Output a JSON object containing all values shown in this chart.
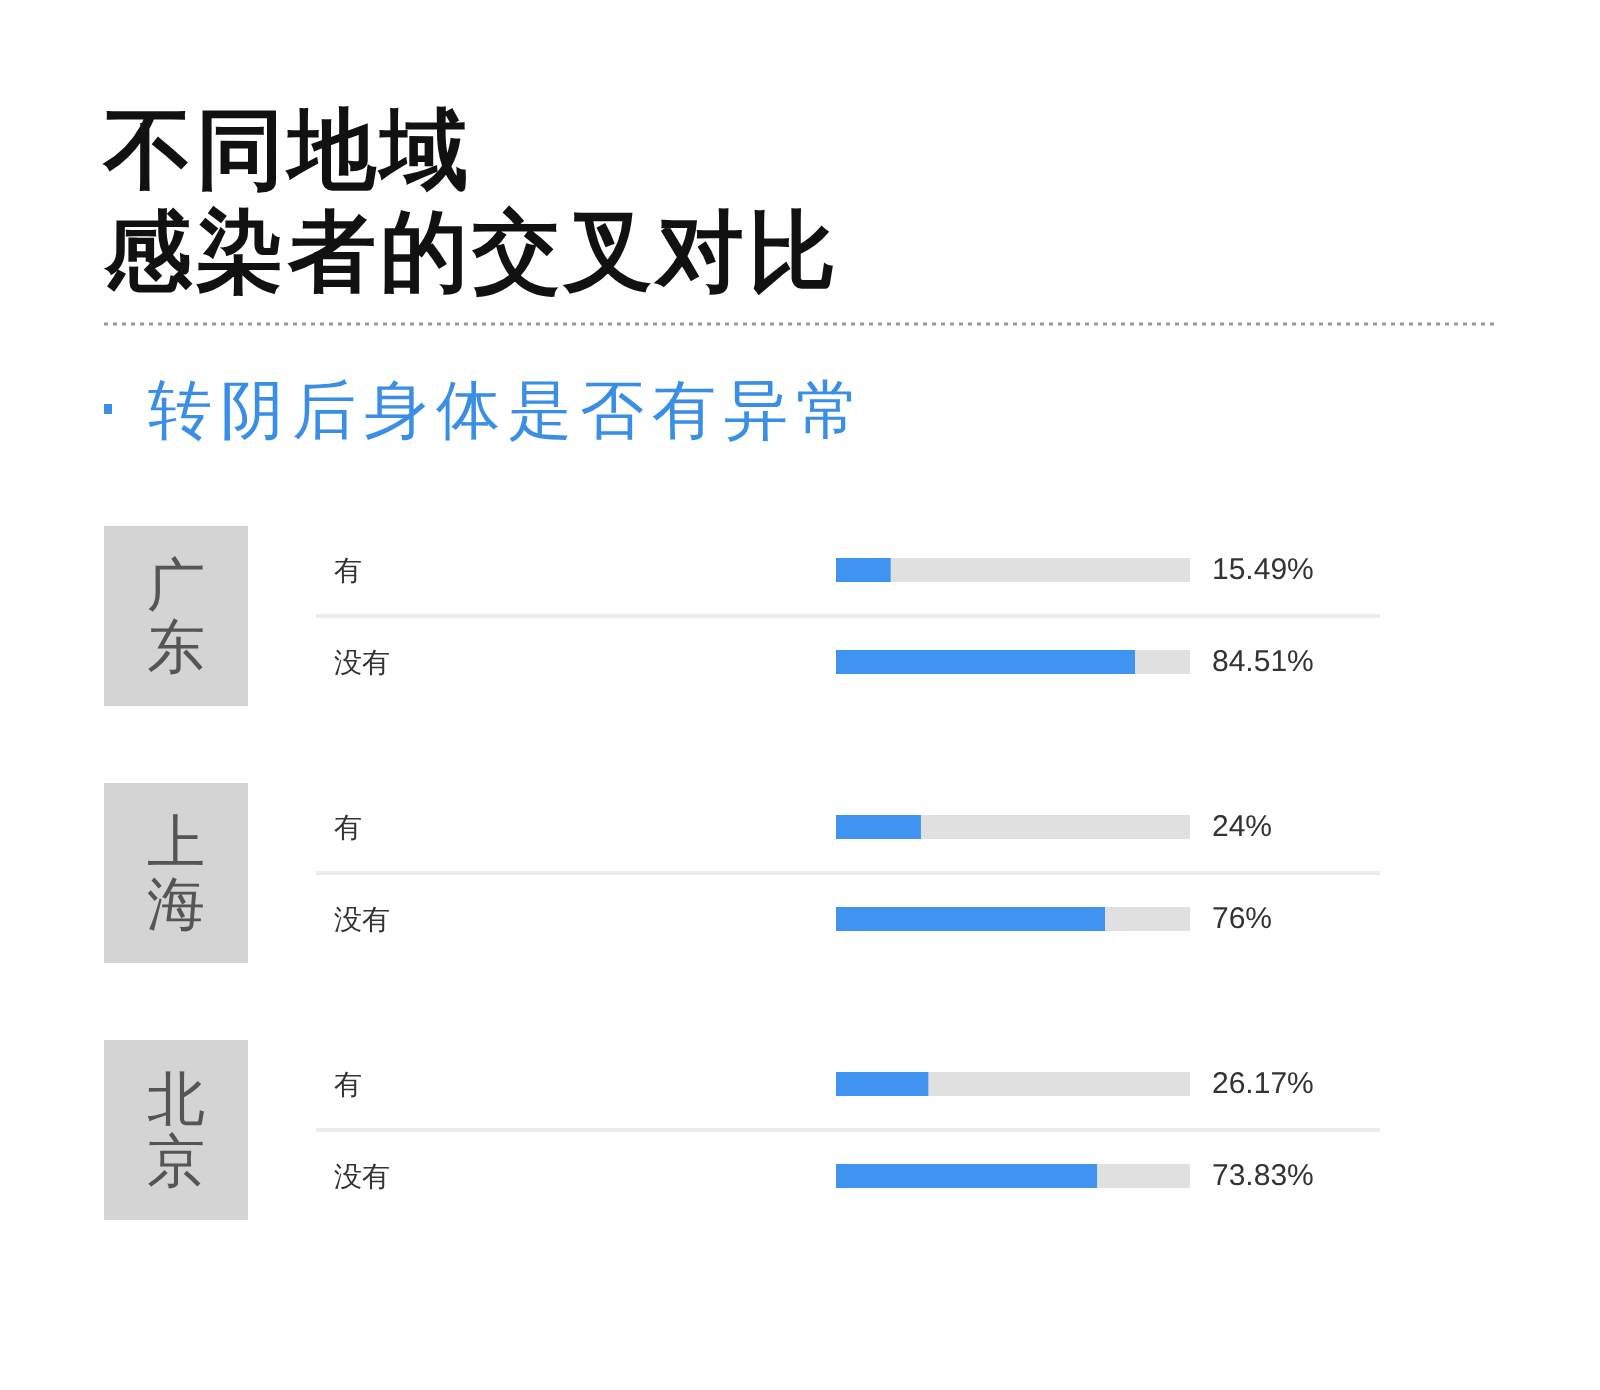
{
  "chart_data": [
    {
      "type": "other",
      "title": "不同地域感染者的交叉对比",
      "subtitle": "转阴后身体是否有异常"
    },
    {
      "type": "bar",
      "orientation": "horizontal",
      "stacked": true,
      "title": "广东",
      "categories": [
        "有",
        "没有"
      ],
      "xlim": [
        0,
        100
      ],
      "series": [
        {
          "color": "#3f94f2",
          "values": [
            15.49,
            84.51
          ],
          "value_labels": [
            "15.49%",
            "84.51%"
          ]
        },
        {
          "color": "#e0e0e0",
          "values": [
            84.51,
            15.49
          ]
        }
      ]
    },
    {
      "type": "bar",
      "orientation": "horizontal",
      "stacked": true,
      "title": "上海",
      "categories": [
        "有",
        "没有"
      ],
      "xlim": [
        0,
        100
      ],
      "series": [
        {
          "color": "#3f94f2",
          "values": [
            24,
            76
          ],
          "value_labels": [
            "24%",
            "76%"
          ]
        },
        {
          "color": "#e0e0e0",
          "values": [
            76,
            24
          ]
        }
      ]
    },
    {
      "type": "bar",
      "orientation": "horizontal",
      "stacked": true,
      "title": "北京",
      "categories": [
        "有",
        "没有"
      ],
      "xlim": [
        0,
        100
      ],
      "series": [
        {
          "color": "#3f94f2",
          "values": [
            26.17,
            73.83
          ],
          "value_labels": [
            "26.17%",
            "73.83%"
          ]
        },
        {
          "color": "#e0e0e0",
          "values": [
            73.83,
            26.17
          ]
        }
      ]
    }
  ]
}
